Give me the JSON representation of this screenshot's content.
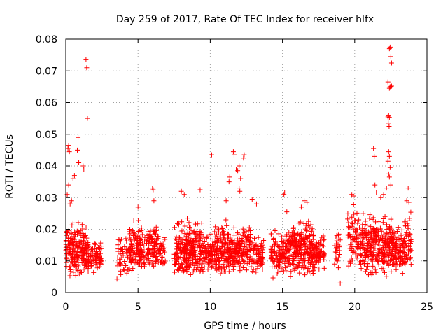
{
  "chart_data": {
    "type": "scatter",
    "title": "Day 259 of 2017, Rate Of TEC Index for receiver hlfx",
    "xlabel": "GPS time / hours",
    "ylabel": "ROTI / TECUs",
    "xlim": [
      0,
      25
    ],
    "ylim": [
      0,
      0.08
    ],
    "grid": true,
    "marker": "+",
    "color": "#ff0000",
    "x_ticks": [
      0,
      5,
      10,
      15,
      20,
      25
    ],
    "x_tick_labels": [
      "0",
      "5",
      "10",
      "15",
      "20",
      "25"
    ],
    "y_ticks": [
      0,
      0.01,
      0.02,
      0.03,
      0.04,
      0.05,
      0.06,
      0.07,
      0.08
    ],
    "y_tick_labels": [
      "0",
      "0.01",
      "0.02",
      "0.03",
      "0.04",
      "0.05",
      "0.06",
      "0.07",
      "0.08"
    ],
    "clusters": [
      {
        "x_range": [
          0.0,
          1.6
        ],
        "y_range": [
          0.004,
          0.024
        ],
        "count": 230
      },
      {
        "x_range": [
          1.7,
          2.5
        ],
        "y_range": [
          0.005,
          0.018
        ],
        "count": 70
      },
      {
        "x_range": [
          3.5,
          4.6
        ],
        "y_range": [
          0.004,
          0.02
        ],
        "count": 60
      },
      {
        "x_range": [
          4.4,
          5.2
        ],
        "y_range": [
          0.005,
          0.026
        ],
        "count": 80
      },
      {
        "x_range": [
          5.0,
          6.4
        ],
        "y_range": [
          0.005,
          0.024
        ],
        "count": 150
      },
      {
        "x_range": [
          6.4,
          6.9
        ],
        "y_range": [
          0.006,
          0.02
        ],
        "count": 40
      },
      {
        "x_range": [
          7.5,
          9.6
        ],
        "y_range": [
          0.004,
          0.025
        ],
        "count": 300
      },
      {
        "x_range": [
          9.6,
          10.4
        ],
        "y_range": [
          0.006,
          0.02
        ],
        "count": 70
      },
      {
        "x_range": [
          10.3,
          12.8
        ],
        "y_range": [
          0.005,
          0.024
        ],
        "count": 320
      },
      {
        "x_range": [
          12.8,
          13.7
        ],
        "y_range": [
          0.005,
          0.02
        ],
        "count": 80
      },
      {
        "x_range": [
          14.2,
          15.6
        ],
        "y_range": [
          0.004,
          0.022
        ],
        "count": 150
      },
      {
        "x_range": [
          15.6,
          17.2
        ],
        "y_range": [
          0.004,
          0.026
        ],
        "count": 220
      },
      {
        "x_range": [
          17.0,
          17.9
        ],
        "y_range": [
          0.006,
          0.02
        ],
        "count": 80
      },
      {
        "x_range": [
          18.6,
          19.0
        ],
        "y_range": [
          0.006,
          0.021
        ],
        "count": 30
      },
      {
        "x_range": [
          19.5,
          20.4
        ],
        "y_range": [
          0.006,
          0.03
        ],
        "count": 80
      },
      {
        "x_range": [
          20.4,
          22.6
        ],
        "y_range": [
          0.004,
          0.028
        ],
        "count": 300
      },
      {
        "x_range": [
          22.6,
          23.5
        ],
        "y_range": [
          0.005,
          0.024
        ],
        "count": 110
      },
      {
        "x_range": [
          23.4,
          23.9
        ],
        "y_range": [
          0.006,
          0.029
        ],
        "count": 45
      }
    ],
    "outliers": [
      {
        "x": 0.15,
        "y": 0.0455
      },
      {
        "x": 0.2,
        "y": 0.0465
      },
      {
        "x": 0.25,
        "y": 0.0445
      },
      {
        "x": 0.1,
        "y": 0.031
      },
      {
        "x": 0.2,
        "y": 0.034
      },
      {
        "x": 0.5,
        "y": 0.036
      },
      {
        "x": 0.6,
        "y": 0.037
      },
      {
        "x": 0.85,
        "y": 0.049
      },
      {
        "x": 0.8,
        "y": 0.045
      },
      {
        "x": 0.9,
        "y": 0.041
      },
      {
        "x": 1.2,
        "y": 0.04
      },
      {
        "x": 1.25,
        "y": 0.039
      },
      {
        "x": 1.4,
        "y": 0.0735
      },
      {
        "x": 1.45,
        "y": 0.071
      },
      {
        "x": 1.5,
        "y": 0.055
      },
      {
        "x": 0.4,
        "y": 0.029
      },
      {
        "x": 0.3,
        "y": 0.028
      },
      {
        "x": 6.0,
        "y": 0.033
      },
      {
        "x": 6.05,
        "y": 0.0325
      },
      {
        "x": 6.1,
        "y": 0.029
      },
      {
        "x": 5.0,
        "y": 0.027
      },
      {
        "x": 8.0,
        "y": 0.032
      },
      {
        "x": 8.2,
        "y": 0.031
      },
      {
        "x": 9.3,
        "y": 0.0325
      },
      {
        "x": 10.1,
        "y": 0.0435
      },
      {
        "x": 11.6,
        "y": 0.0445
      },
      {
        "x": 11.65,
        "y": 0.0435
      },
      {
        "x": 12.3,
        "y": 0.0425
      },
      {
        "x": 12.35,
        "y": 0.0435
      },
      {
        "x": 11.8,
        "y": 0.039
      },
      {
        "x": 11.9,
        "y": 0.0385
      },
      {
        "x": 12.0,
        "y": 0.04
      },
      {
        "x": 12.1,
        "y": 0.036
      },
      {
        "x": 11.3,
        "y": 0.035
      },
      {
        "x": 11.35,
        "y": 0.0365
      },
      {
        "x": 12.0,
        "y": 0.033
      },
      {
        "x": 12.05,
        "y": 0.032
      },
      {
        "x": 11.1,
        "y": 0.029
      },
      {
        "x": 12.9,
        "y": 0.0295
      },
      {
        "x": 13.2,
        "y": 0.028
      },
      {
        "x": 15.1,
        "y": 0.031
      },
      {
        "x": 15.15,
        "y": 0.0315
      },
      {
        "x": 16.3,
        "y": 0.027
      },
      {
        "x": 16.5,
        "y": 0.029
      },
      {
        "x": 16.7,
        "y": 0.0285
      },
      {
        "x": 15.3,
        "y": 0.0255
      },
      {
        "x": 19.0,
        "y": 0.003
      },
      {
        "x": 19.8,
        "y": 0.031
      },
      {
        "x": 19.9,
        "y": 0.0305
      },
      {
        "x": 21.3,
        "y": 0.0455
      },
      {
        "x": 21.35,
        "y": 0.043
      },
      {
        "x": 21.4,
        "y": 0.034
      },
      {
        "x": 21.5,
        "y": 0.0315
      },
      {
        "x": 21.8,
        "y": 0.03
      },
      {
        "x": 22.0,
        "y": 0.031
      },
      {
        "x": 22.3,
        "y": 0.0665
      },
      {
        "x": 22.4,
        "y": 0.077
      },
      {
        "x": 22.45,
        "y": 0.0775
      },
      {
        "x": 22.5,
        "y": 0.0745
      },
      {
        "x": 22.55,
        "y": 0.0725
      },
      {
        "x": 22.4,
        "y": 0.0645
      },
      {
        "x": 22.45,
        "y": 0.065
      },
      {
        "x": 22.5,
        "y": 0.0648
      },
      {
        "x": 22.55,
        "y": 0.0652
      },
      {
        "x": 22.3,
        "y": 0.0555
      },
      {
        "x": 22.35,
        "y": 0.056
      },
      {
        "x": 22.4,
        "y": 0.0553
      },
      {
        "x": 22.38,
        "y": 0.0525
      },
      {
        "x": 22.32,
        "y": 0.0535
      },
      {
        "x": 22.35,
        "y": 0.0445
      },
      {
        "x": 22.4,
        "y": 0.043
      },
      {
        "x": 22.3,
        "y": 0.0415
      },
      {
        "x": 22.45,
        "y": 0.0395
      },
      {
        "x": 22.35,
        "y": 0.0375
      },
      {
        "x": 22.4,
        "y": 0.0365
      },
      {
        "x": 22.5,
        "y": 0.034
      },
      {
        "x": 22.2,
        "y": 0.033
      },
      {
        "x": 23.7,
        "y": 0.033
      },
      {
        "x": 23.6,
        "y": 0.029
      },
      {
        "x": 23.75,
        "y": 0.0285
      }
    ]
  }
}
